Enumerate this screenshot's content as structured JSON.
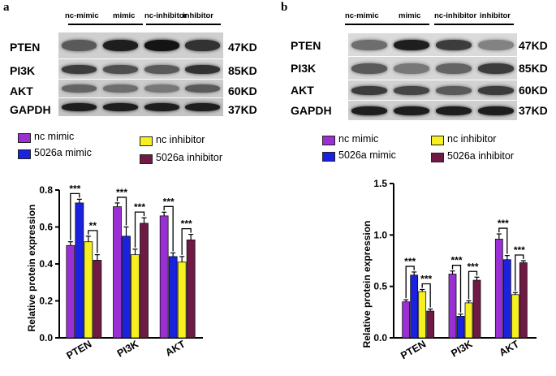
{
  "colors": {
    "nc_mimic": "#9a2fd4",
    "mimic": "#1a22e0",
    "nc_inhibitor": "#f7f020",
    "inhibitor": "#6e1a44"
  },
  "lanes": [
    "nc-mimic",
    "mimic",
    "nc-inhibitor",
    "inhibitor"
  ],
  "legend": [
    "nc mimic",
    "5026a  mimic",
    "nc inhibitor",
    "5026a  inhibitor"
  ],
  "blot_rows": [
    {
      "protein": "PTEN",
      "mw": "47KD"
    },
    {
      "protein": "PI3K",
      "mw": "85KD"
    },
    {
      "protein": "AKT",
      "mw": "60KD"
    },
    {
      "protein": "GAPDH",
      "mw": "37KD"
    }
  ],
  "panel_a": {
    "label": "a",
    "blot_bands": {
      "PTEN": [
        0.55,
        0.85,
        0.9,
        0.75
      ],
      "PI3K": [
        0.7,
        0.6,
        0.55,
        0.75
      ],
      "AKT": [
        0.5,
        0.45,
        0.4,
        0.55
      ],
      "GAPDH": [
        0.85,
        0.85,
        0.85,
        0.85
      ]
    },
    "chart_data": {
      "type": "bar",
      "ylabel": "Relative protein expression",
      "ylim": [
        0,
        0.8
      ],
      "yticks": [
        "0.0",
        "0.2",
        "0.4",
        "0.6",
        "0.8"
      ],
      "categories": [
        "PTEN",
        "PI3K",
        "AKT"
      ],
      "series": [
        {
          "name": "nc mimic",
          "values": [
            0.5,
            0.71,
            0.66
          ],
          "errors": [
            0.02,
            0.02,
            0.02
          ]
        },
        {
          "name": "5026a  mimic",
          "values": [
            0.73,
            0.55,
            0.44
          ],
          "errors": [
            0.02,
            0.05,
            0.02
          ]
        },
        {
          "name": "nc inhibitor",
          "values": [
            0.52,
            0.45,
            0.41
          ],
          "errors": [
            0.03,
            0.03,
            0.03
          ]
        },
        {
          "name": "5026a  inhibitor",
          "values": [
            0.42,
            0.62,
            0.53
          ],
          "errors": [
            0.03,
            0.03,
            0.03
          ]
        }
      ],
      "annotations": [
        {
          "text": "***",
          "category": 0,
          "pair": [
            0,
            1
          ]
        },
        {
          "text": "**",
          "category": 0,
          "pair": [
            2,
            3
          ]
        },
        {
          "text": "***",
          "category": 1,
          "pair": [
            0,
            1
          ]
        },
        {
          "text": "***",
          "category": 1,
          "pair": [
            2,
            3
          ]
        },
        {
          "text": "***",
          "category": 2,
          "pair": [
            0,
            1
          ]
        },
        {
          "text": "***",
          "category": 2,
          "pair": [
            2,
            3
          ]
        }
      ]
    }
  },
  "panel_b": {
    "label": "b",
    "blot_bands": {
      "PTEN": [
        0.45,
        0.85,
        0.7,
        0.35
      ],
      "PI3K": [
        0.55,
        0.4,
        0.5,
        0.7
      ],
      "AKT": [
        0.7,
        0.65,
        0.55,
        0.7
      ],
      "GAPDH": [
        0.85,
        0.85,
        0.85,
        0.85
      ]
    },
    "chart_data": {
      "type": "bar",
      "ylabel": "Relative protein expression",
      "ylim": [
        0,
        1.5
      ],
      "yticks": [
        "0.0",
        "0.5",
        "1.0",
        "1.5"
      ],
      "categories": [
        "PTEN",
        "PI3K",
        "AKT"
      ],
      "series": [
        {
          "name": "nc mimic",
          "values": [
            0.35,
            0.62,
            0.96
          ],
          "errors": [
            0.02,
            0.03,
            0.05
          ]
        },
        {
          "name": "5026a  mimic",
          "values": [
            0.61,
            0.21,
            0.76
          ],
          "errors": [
            0.03,
            0.02,
            0.04
          ]
        },
        {
          "name": "nc inhibitor",
          "values": [
            0.45,
            0.34,
            0.42
          ],
          "errors": [
            0.02,
            0.02,
            0.02
          ]
        },
        {
          "name": "5026a  inhibitor",
          "values": [
            0.26,
            0.56,
            0.73
          ],
          "errors": [
            0.02,
            0.03,
            0.02
          ]
        }
      ],
      "annotations": [
        {
          "text": "***",
          "category": 0,
          "pair": [
            0,
            1
          ]
        },
        {
          "text": "***",
          "category": 0,
          "pair": [
            2,
            3
          ]
        },
        {
          "text": "***",
          "category": 1,
          "pair": [
            0,
            1
          ]
        },
        {
          "text": "***",
          "category": 1,
          "pair": [
            2,
            3
          ]
        },
        {
          "text": "***",
          "category": 2,
          "pair": [
            0,
            1
          ]
        },
        {
          "text": "***",
          "category": 2,
          "pair": [
            2,
            3
          ]
        }
      ]
    }
  }
}
